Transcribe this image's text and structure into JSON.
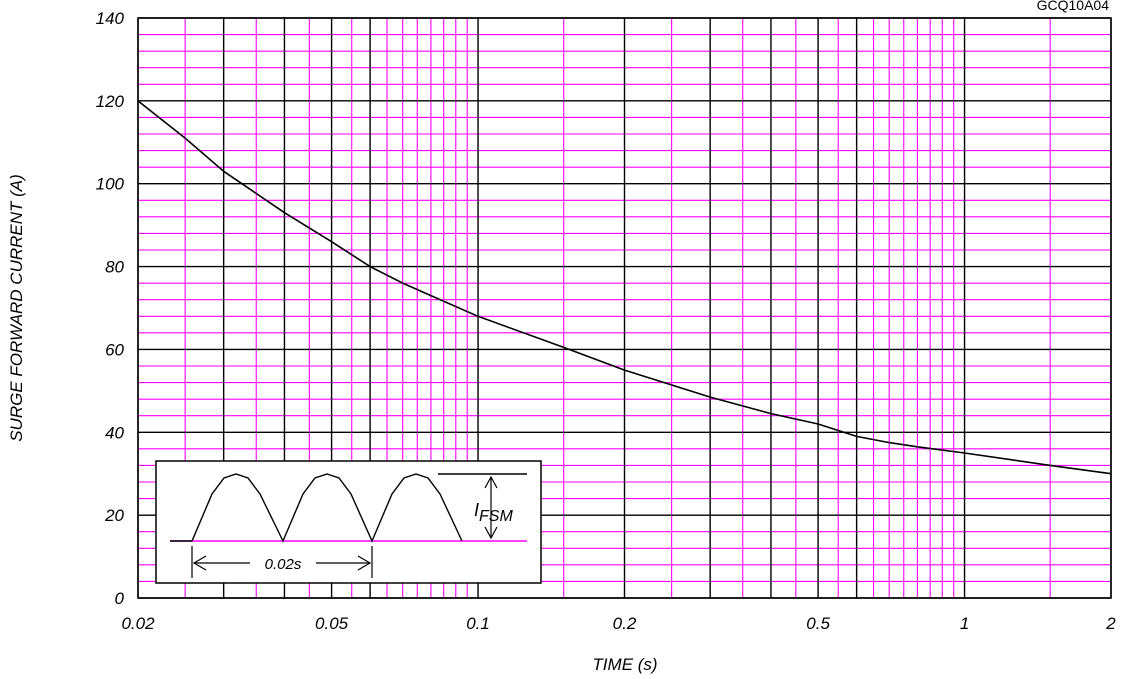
{
  "chart_data": {
    "type": "line",
    "title": "",
    "xlabel": "TIME (s)",
    "ylabel": "SURGE FORWARD CURRENT (A)",
    "x_scale": "log",
    "xlim": [
      0.02,
      2
    ],
    "ylim": [
      0,
      140
    ],
    "grid": true,
    "x_tick_labels": [
      {
        "value": 0.02,
        "label": "0.02"
      },
      {
        "value": 0.05,
        "label": "0.05"
      },
      {
        "value": 0.1,
        "label": "0.1"
      },
      {
        "value": 0.2,
        "label": "0.2"
      },
      {
        "value": 0.5,
        "label": "0.5"
      },
      {
        "value": 1,
        "label": "1"
      },
      {
        "value": 2,
        "label": "2"
      }
    ],
    "y_tick_labels": [
      {
        "value": 0,
        "label": "0"
      },
      {
        "value": 20,
        "label": "20"
      },
      {
        "value": 40,
        "label": "40"
      },
      {
        "value": 60,
        "label": "60"
      },
      {
        "value": 80,
        "label": "80"
      },
      {
        "value": 100,
        "label": "100"
      },
      {
        "value": 120,
        "label": "120"
      },
      {
        "value": 140,
        "label": "140"
      }
    ],
    "series": [
      {
        "x": [
          0.02,
          0.025,
          0.03,
          0.04,
          0.05,
          0.06,
          0.07,
          0.08,
          0.1,
          0.15,
          0.2,
          0.3,
          0.4,
          0.5,
          0.6,
          0.7,
          0.8,
          1,
          1.5,
          2
        ],
        "y": [
          120,
          111,
          103,
          93,
          86,
          80,
          76,
          73,
          68,
          60.5,
          55,
          48.5,
          44.5,
          42,
          39,
          37.5,
          36.5,
          35,
          32,
          30
        ]
      }
    ],
    "annotations": {
      "part_code": "GCQ10A04",
      "inset": {
        "peak_label": "I",
        "peak_subscript": "FSM",
        "period_label": "0.02s"
      }
    },
    "colors": {
      "minor_grid": "#ff00ff",
      "major_grid": "#000000",
      "curve": "#000000",
      "inset_baseline": "#ff00ff"
    }
  }
}
